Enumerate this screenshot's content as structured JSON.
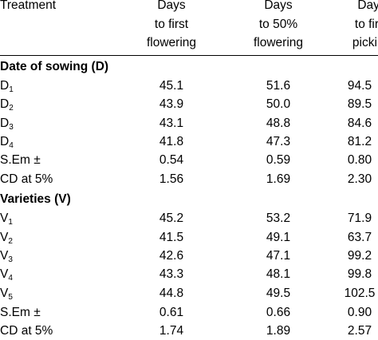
{
  "header": {
    "treatment": "Treatment",
    "col1": [
      "Days",
      "to first",
      "flowering"
    ],
    "col2": [
      "Days",
      "to 50%",
      "flowering"
    ],
    "col3": [
      "Days",
      "to first",
      "picking"
    ]
  },
  "groups": [
    {
      "title": "Date of sowing (D)",
      "rows": [
        {
          "label": "D",
          "sub": "1",
          "v1": "45.1",
          "v2": "51.6",
          "v3": "94.5"
        },
        {
          "label": "D",
          "sub": "2",
          "v1": "43.9",
          "v2": "50.0",
          "v3": "89.5"
        },
        {
          "label": "D",
          "sub": "3",
          "v1": "43.1",
          "v2": "48.8",
          "v3": "84.6"
        },
        {
          "label": "D",
          "sub": "4",
          "v1": "41.8",
          "v2": "47.3",
          "v3": "81.2"
        },
        {
          "label": "S.Em ±",
          "sub": "",
          "v1": "0.54",
          "v2": "0.59",
          "v3": "0.80"
        },
        {
          "label": "CD at 5%",
          "sub": "",
          "v1": "1.56",
          "v2": "1.69",
          "v3": "2.30"
        }
      ]
    },
    {
      "title": "Varieties (V)",
      "rows": [
        {
          "label": "V",
          "sub": "1",
          "v1": "45.2",
          "v2": "53.2",
          "v3": "71.9"
        },
        {
          "label": "V",
          "sub": "2",
          "v1": "41.5",
          "v2": "49.1",
          "v3": "63.7"
        },
        {
          "label": "V",
          "sub": "3",
          "v1": "42.6",
          "v2": "47.1",
          "v3": "99.2"
        },
        {
          "label": "V",
          "sub": "4",
          "v1": "43.3",
          "v2": "48.1",
          "v3": "99.8"
        },
        {
          "label": "V",
          "sub": "5",
          "v1": "44.8",
          "v2": "49.5",
          "v3": "102.5"
        },
        {
          "label": "S.Em ±",
          "sub": "",
          "v1": "0.61",
          "v2": "0.66",
          "v3": "0.90"
        },
        {
          "label": "CD at 5%",
          "sub": "",
          "v1": "1.74",
          "v2": "1.89",
          "v3": "2.57"
        }
      ]
    }
  ]
}
